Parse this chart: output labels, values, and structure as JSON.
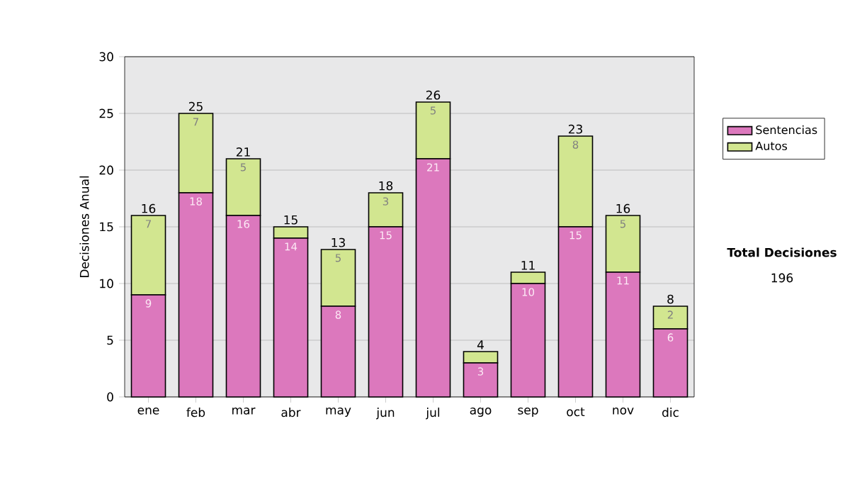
{
  "chart_data": {
    "type": "bar",
    "stacked": true,
    "ylabel": "Decisiones Anual",
    "categories": [
      "ene",
      "feb",
      "mar",
      "abr",
      "may",
      "jun",
      "jul",
      "ago",
      "sep",
      "oct",
      "nov",
      "dic"
    ],
    "series": [
      {
        "name": "Sentencias",
        "color": "#dc78bd",
        "values": [
          9,
          18,
          16,
          14,
          8,
          15,
          21,
          3,
          10,
          15,
          11,
          6
        ],
        "value_labels": [
          "9",
          "18",
          "16",
          "14",
          "8",
          "15",
          "21",
          "3",
          "10",
          "15",
          "11",
          "6"
        ]
      },
      {
        "name": "Autos",
        "color": "#d2e690",
        "values": [
          7,
          7,
          5,
          1,
          5,
          3,
          5,
          1,
          1,
          8,
          5,
          2
        ],
        "value_labels": [
          "7",
          "7",
          "5",
          null,
          "5",
          "3",
          "5",
          null,
          null,
          "8",
          "5",
          "2"
        ]
      }
    ],
    "totals": [
      "16",
      "25",
      "21",
      "15",
      "13",
      "18",
      "26",
      "4",
      "11",
      "23",
      "16",
      "8"
    ],
    "ylim": [
      0,
      30
    ],
    "yticks": [
      0,
      5,
      10,
      15,
      20,
      25,
      30
    ],
    "grid": "y",
    "legend": "right",
    "annotations": [
      "Total Decisiones",
      "196"
    ]
  }
}
